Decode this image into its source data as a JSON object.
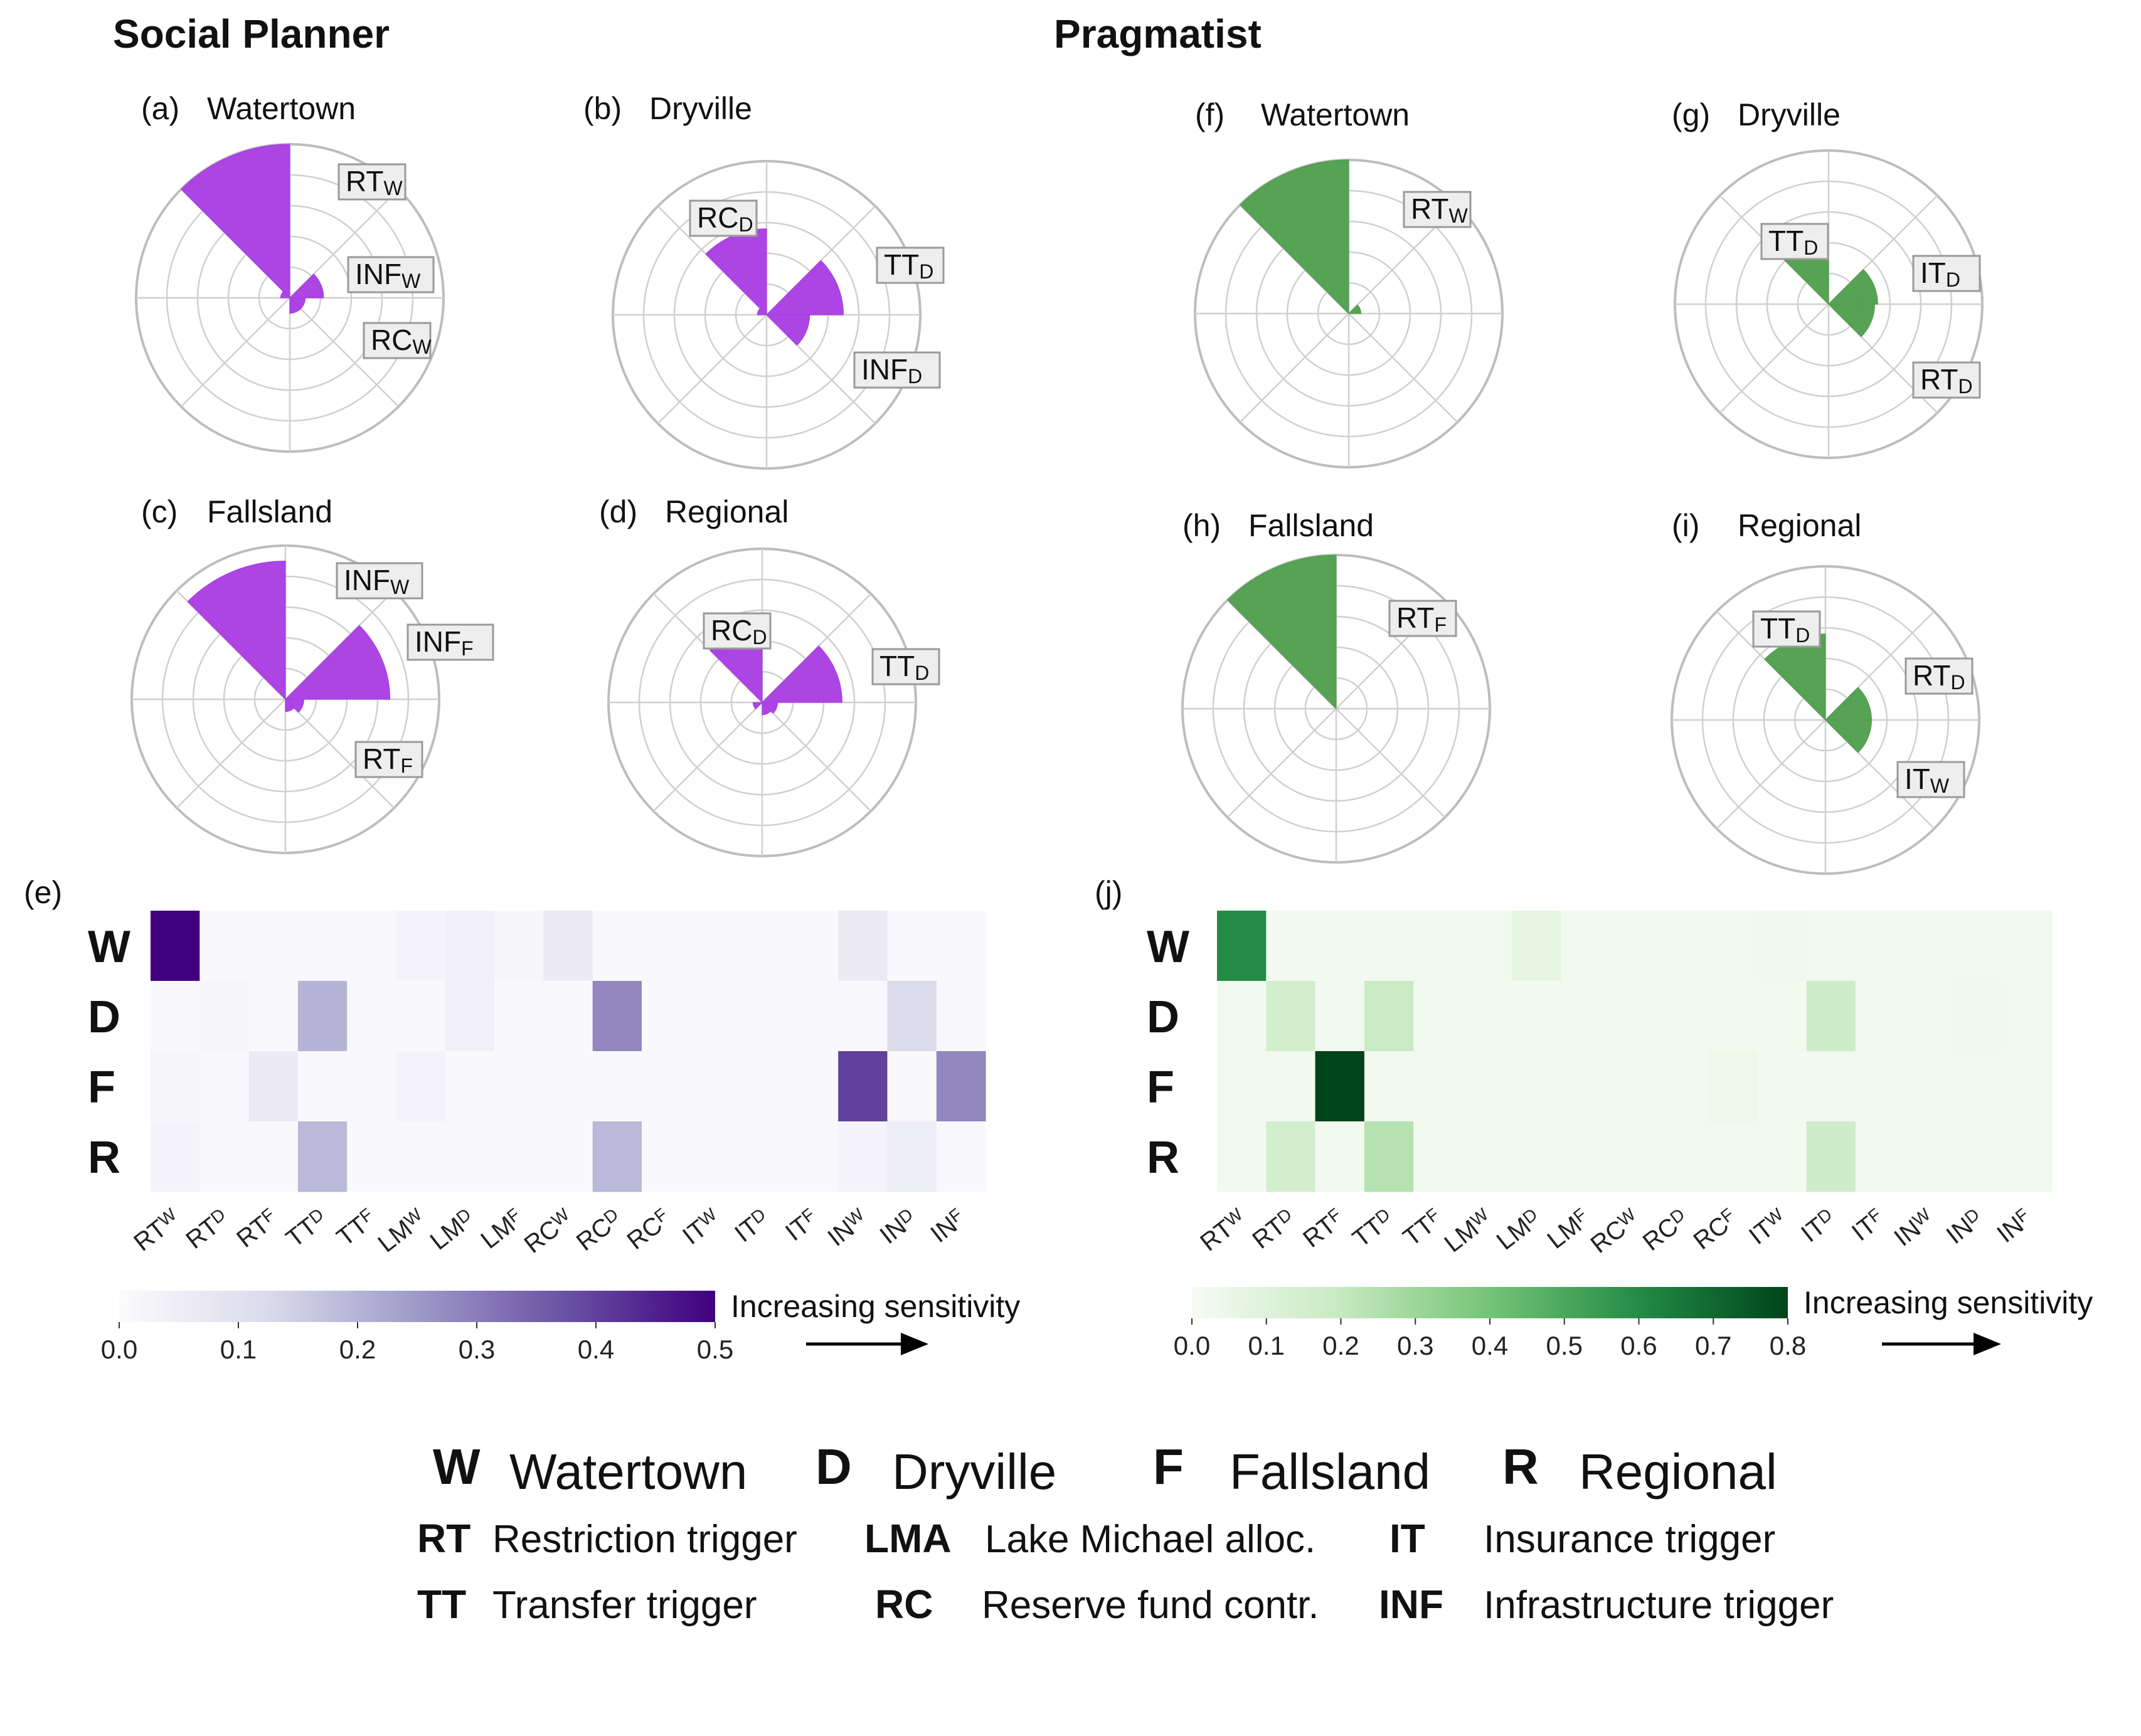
{
  "headers": {
    "left": "Social Planner",
    "right": "Pragmatist"
  },
  "colors": {
    "purple_rose": "#a83be3",
    "green_rose": "#4e9e4c",
    "purple_scale_max": "#3f007d",
    "green_scale_max": "#00441b",
    "grid": "#d0d0d0",
    "ring": "#bdbdbd"
  },
  "chart_data": [
    {
      "type": "polar-bar",
      "panel": "(a)",
      "title": "Watertown",
      "scheme": "purple",
      "rmax": 5,
      "sectors": 8,
      "bars": [
        {
          "sector": 7,
          "value": 5.0
        },
        {
          "sector": 1,
          "value": 1.1
        },
        {
          "sector": 2,
          "value": 0.5
        },
        {
          "sector": 3,
          "value": 0.5
        },
        {
          "sector": 6,
          "value": 0.3
        }
      ],
      "labels": [
        {
          "main": "RT",
          "sub": "W"
        },
        {
          "main": "INF",
          "sub": "W"
        },
        {
          "main": "RC",
          "sub": "W"
        }
      ]
    },
    {
      "type": "polar-bar",
      "panel": "(b)",
      "title": "Dryville",
      "scheme": "purple",
      "rmax": 5,
      "sectors": 8,
      "bars": [
        {
          "sector": 7,
          "value": 2.8
        },
        {
          "sector": 1,
          "value": 2.5
        },
        {
          "sector": 2,
          "value": 1.4
        },
        {
          "sector": 6,
          "value": 0.3
        }
      ],
      "labels": [
        {
          "main": "RC",
          "sub": "D"
        },
        {
          "main": "TT",
          "sub": "D"
        },
        {
          "main": "INF",
          "sub": "D"
        }
      ]
    },
    {
      "type": "polar-bar",
      "panel": "(c)",
      "title": "Fallsland",
      "scheme": "purple",
      "rmax": 5,
      "sectors": 8,
      "bars": [
        {
          "sector": 7,
          "value": 4.5
        },
        {
          "sector": 1,
          "value": 3.4
        },
        {
          "sector": 2,
          "value": 0.6
        },
        {
          "sector": 3,
          "value": 0.4
        }
      ],
      "labels": [
        {
          "main": "INF",
          "sub": "W"
        },
        {
          "main": "INF",
          "sub": "F"
        },
        {
          "main": "RT",
          "sub": "F"
        }
      ]
    },
    {
      "type": "polar-bar",
      "panel": "(d)",
      "title": "Regional",
      "scheme": "purple",
      "rmax": 5,
      "sectors": 8,
      "bars": [
        {
          "sector": 7,
          "value": 2.4
        },
        {
          "sector": 1,
          "value": 2.6
        },
        {
          "sector": 2,
          "value": 0.5
        },
        {
          "sector": 3,
          "value": 0.4
        },
        {
          "sector": 5,
          "value": 0.3
        }
      ],
      "labels": [
        {
          "main": "RC",
          "sub": "D"
        },
        {
          "main": "TT",
          "sub": "D"
        }
      ]
    },
    {
      "type": "polar-bar",
      "panel": "(f)",
      "title": "Watertown",
      "scheme": "green",
      "rmax": 5,
      "sectors": 8,
      "bars": [
        {
          "sector": 7,
          "value": 5.0
        },
        {
          "sector": 1,
          "value": 0.4
        }
      ],
      "labels": [
        {
          "main": "RT",
          "sub": "W"
        }
      ]
    },
    {
      "type": "polar-bar",
      "panel": "(g)",
      "title": "Dryville",
      "scheme": "green",
      "rmax": 5,
      "sectors": 8,
      "bars": [
        {
          "sector": 7,
          "value": 2.1
        },
        {
          "sector": 1,
          "value": 1.6
        },
        {
          "sector": 2,
          "value": 1.5
        }
      ],
      "labels": [
        {
          "main": "TT",
          "sub": "D"
        },
        {
          "main": "IT",
          "sub": "D"
        },
        {
          "main": "RT",
          "sub": "D"
        }
      ]
    },
    {
      "type": "polar-bar",
      "panel": "(h)",
      "title": "Fallsland",
      "scheme": "green",
      "rmax": 5,
      "sectors": 8,
      "bars": [
        {
          "sector": 7,
          "value": 5.0
        }
      ],
      "labels": [
        {
          "main": "RT",
          "sub": "F"
        }
      ]
    },
    {
      "type": "polar-bar",
      "panel": "(i)",
      "title": "Regional",
      "scheme": "green",
      "rmax": 5,
      "sectors": 8,
      "bars": [
        {
          "sector": 7,
          "value": 2.8
        },
        {
          "sector": 1,
          "value": 1.5
        },
        {
          "sector": 2,
          "value": 1.5
        }
      ],
      "labels": [
        {
          "main": "TT",
          "sub": "D"
        },
        {
          "main": "RT",
          "sub": "D"
        },
        {
          "main": "IT",
          "sub": "W"
        }
      ]
    },
    {
      "type": "heatmap",
      "panel": "(e)",
      "scheme": "purple",
      "rows": [
        "W",
        "D",
        "F",
        "R"
      ],
      "columns": [
        {
          "main": "RT",
          "sub": "W"
        },
        {
          "main": "RT",
          "sub": "D"
        },
        {
          "main": "RT",
          "sub": "F"
        },
        {
          "main": "TT",
          "sub": "D"
        },
        {
          "main": "TT",
          "sub": "F"
        },
        {
          "main": "LM",
          "sub": "W"
        },
        {
          "main": "LM",
          "sub": "D"
        },
        {
          "main": "LM",
          "sub": "F"
        },
        {
          "main": "RC",
          "sub": "W"
        },
        {
          "main": "RC",
          "sub": "D"
        },
        {
          "main": "RC",
          "sub": "F"
        },
        {
          "main": "IT",
          "sub": "W"
        },
        {
          "main": "IT",
          "sub": "D"
        },
        {
          "main": "IT",
          "sub": "F"
        },
        {
          "main": "IN",
          "sub": "W"
        },
        {
          "main": "IN",
          "sub": "D"
        },
        {
          "main": "IN",
          "sub": "F"
        }
      ],
      "values": [
        [
          0.5,
          0.01,
          0.01,
          0.01,
          0.01,
          0.03,
          0.04,
          0.02,
          0.06,
          0.01,
          0.01,
          0.01,
          0.01,
          0.01,
          0.06,
          0.01,
          0.01
        ],
        [
          0.01,
          0.02,
          0.01,
          0.2,
          0.01,
          0.01,
          0.04,
          0.01,
          0.01,
          0.28,
          0.01,
          0.01,
          0.01,
          0.01,
          0.01,
          0.12,
          0.01
        ],
        [
          0.02,
          0.01,
          0.06,
          0.01,
          0.01,
          0.03,
          0.01,
          0.01,
          0.01,
          0.01,
          0.01,
          0.01,
          0.01,
          0.01,
          0.4,
          0.01,
          0.28
        ],
        [
          0.03,
          0.01,
          0.01,
          0.19,
          0.01,
          0.01,
          0.01,
          0.01,
          0.01,
          0.19,
          0.01,
          0.01,
          0.01,
          0.01,
          0.03,
          0.05,
          0.01
        ]
      ],
      "colorbar": {
        "min": 0.0,
        "max": 0.5,
        "ticks": [
          "0.0",
          "0.1",
          "0.2",
          "0.3",
          "0.4",
          "0.5"
        ],
        "title": "Increasing sensitivity"
      }
    },
    {
      "type": "heatmap",
      "panel": "(j)",
      "scheme": "green",
      "rows": [
        "W",
        "D",
        "F",
        "R"
      ],
      "columns": [
        {
          "main": "RT",
          "sub": "W"
        },
        {
          "main": "RT",
          "sub": "D"
        },
        {
          "main": "RT",
          "sub": "F"
        },
        {
          "main": "TT",
          "sub": "D"
        },
        {
          "main": "TT",
          "sub": "F"
        },
        {
          "main": "LM",
          "sub": "W"
        },
        {
          "main": "LM",
          "sub": "D"
        },
        {
          "main": "LM",
          "sub": "F"
        },
        {
          "main": "RC",
          "sub": "W"
        },
        {
          "main": "RC",
          "sub": "D"
        },
        {
          "main": "RC",
          "sub": "F"
        },
        {
          "main": "IT",
          "sub": "W"
        },
        {
          "main": "IT",
          "sub": "D"
        },
        {
          "main": "IT",
          "sub": "F"
        },
        {
          "main": "IN",
          "sub": "W"
        },
        {
          "main": "IN",
          "sub": "D"
        },
        {
          "main": "IN",
          "sub": "F"
        }
      ],
      "values": [
        [
          0.6,
          0.02,
          0.02,
          0.02,
          0.02,
          0.02,
          0.07,
          0.02,
          0.02,
          0.02,
          0.02,
          0.03,
          0.02,
          0.02,
          0.02,
          0.02,
          0.02
        ],
        [
          0.02,
          0.15,
          0.02,
          0.19,
          0.02,
          0.02,
          0.02,
          0.02,
          0.02,
          0.02,
          0.02,
          0.02,
          0.17,
          0.02,
          0.02,
          0.03,
          0.02
        ],
        [
          0.02,
          0.02,
          0.8,
          0.02,
          0.02,
          0.02,
          0.02,
          0.02,
          0.02,
          0.02,
          0.04,
          0.02,
          0.02,
          0.02,
          0.02,
          0.02,
          0.02
        ],
        [
          0.02,
          0.15,
          0.02,
          0.24,
          0.02,
          0.02,
          0.02,
          0.02,
          0.02,
          0.02,
          0.02,
          0.02,
          0.17,
          0.02,
          0.02,
          0.02,
          0.02
        ]
      ],
      "colorbar": {
        "min": 0.0,
        "max": 0.8,
        "ticks": [
          "0.0",
          "0.1",
          "0.2",
          "0.3",
          "0.4",
          "0.5",
          "0.6",
          "0.7",
          "0.8"
        ],
        "title": "Increasing sensitivity"
      }
    }
  ],
  "legend": {
    "regions": [
      {
        "abbr": "W",
        "name": "Watertown"
      },
      {
        "abbr": "D",
        "name": "Dryville"
      },
      {
        "abbr": "F",
        "name": "Fallsland"
      },
      {
        "abbr": "R",
        "name": "Regional"
      }
    ],
    "actions": [
      {
        "abbr": "RT",
        "name": "Restriction trigger"
      },
      {
        "abbr": "LMA",
        "name": "Lake Michael alloc."
      },
      {
        "abbr": "IT",
        "name": "Insurance trigger"
      },
      {
        "abbr": "TT",
        "name": "Transfer trigger"
      },
      {
        "abbr": "RC",
        "name": "Reserve fund contr."
      },
      {
        "abbr": "INF",
        "name": "Infrastructure trigger"
      }
    ]
  }
}
